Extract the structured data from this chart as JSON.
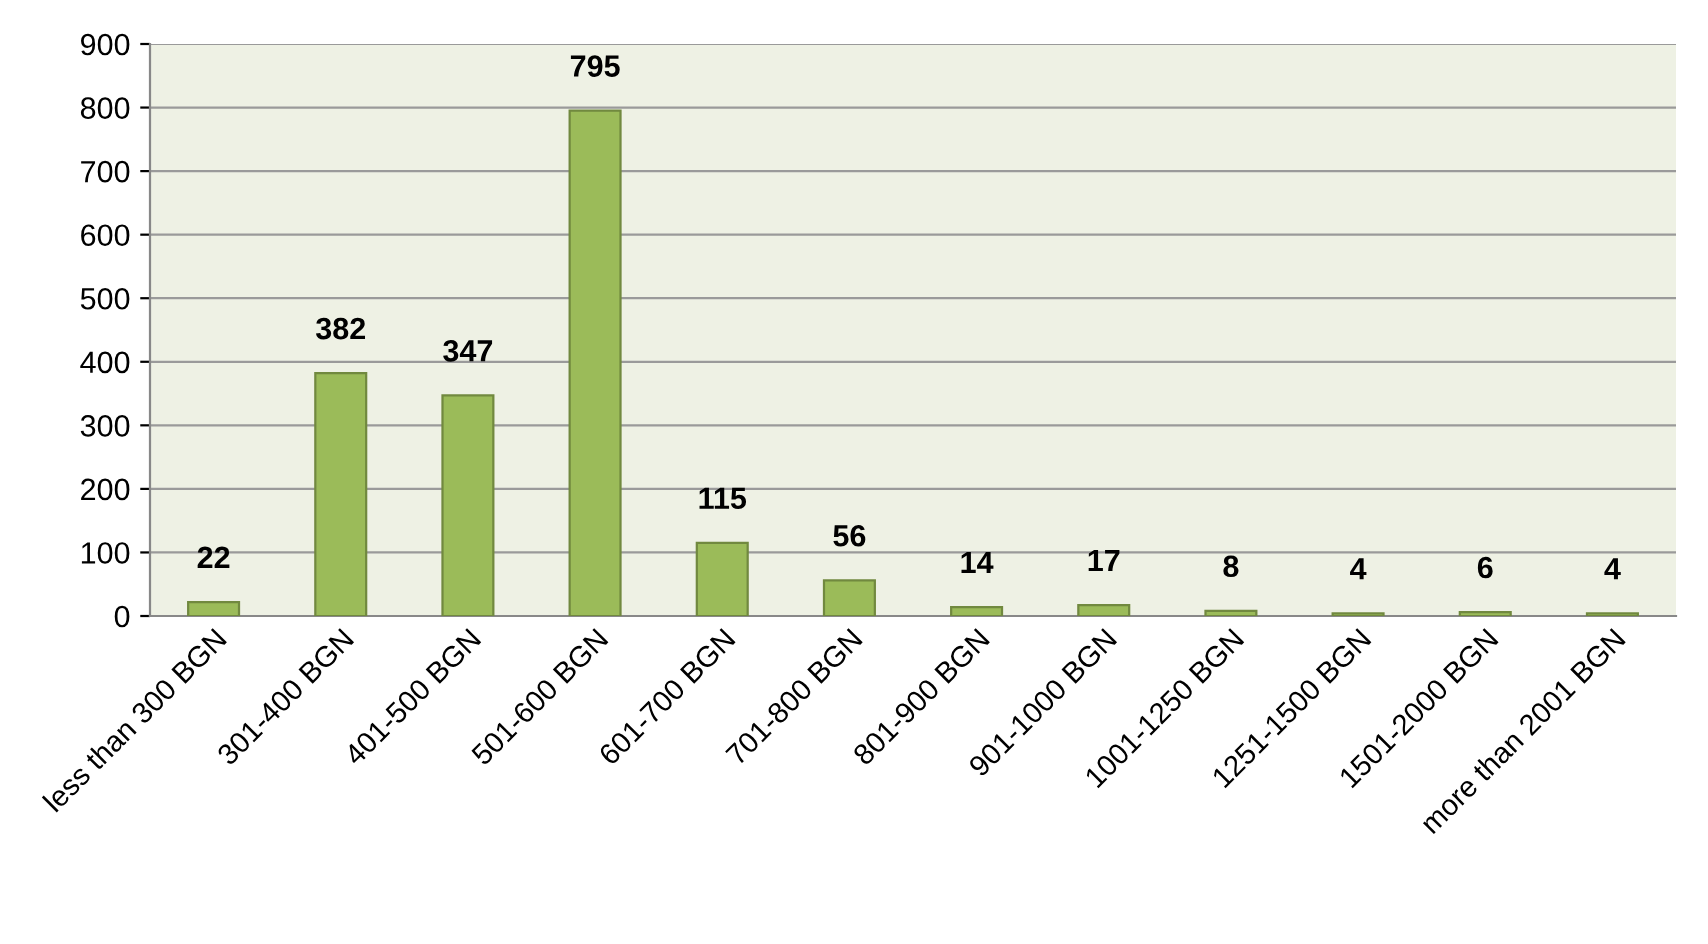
{
  "chart_data": {
    "type": "bar",
    "categories": [
      "less than 300 BGN",
      "301-400 BGN",
      "401-500 BGN",
      "501-600 BGN",
      "601-700 BGN",
      "701-800 BGN",
      "801-900 BGN",
      "901-1000 BGN",
      "1001-1250 BGN",
      "1251-1500 BGN",
      "1501-2000 BGN",
      "more than 2001 BGN"
    ],
    "values": [
      22,
      382,
      347,
      795,
      115,
      56,
      14,
      17,
      8,
      4,
      6,
      4
    ],
    "color": "#9bbb59",
    "ylim": [
      0,
      900
    ],
    "yticks": [
      0,
      100,
      200,
      300,
      400,
      500,
      600,
      700,
      800,
      900
    ],
    "grid": "y",
    "data_labels": true
  }
}
